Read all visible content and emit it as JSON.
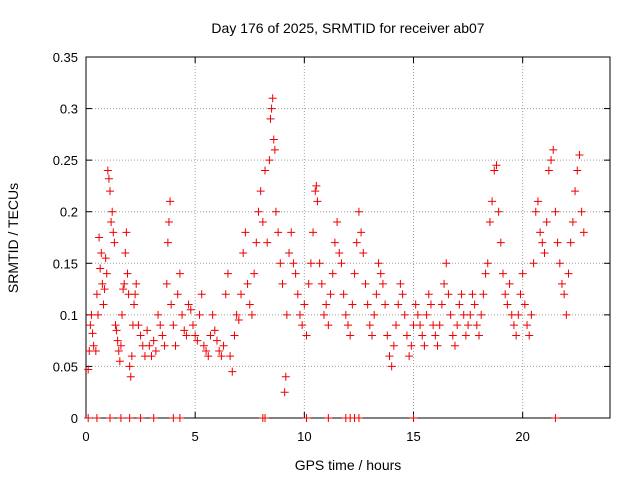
{
  "chart_data": {
    "type": "scatter",
    "title": "Day 176 of 2025, SRMTID for receiver ab07",
    "xlabel": "GPS time / hours",
    "ylabel": "SRMTID / TECUs",
    "xlim": [
      0,
      24
    ],
    "ylim": [
      0,
      0.35
    ],
    "x_ticks": [
      0,
      5,
      10,
      15,
      20
    ],
    "y_ticks": [
      0,
      0.05,
      0.1,
      0.15,
      0.2,
      0.25,
      0.3,
      0.35
    ],
    "x_tick_labels": [
      "0",
      "5",
      "10",
      "15",
      "20"
    ],
    "y_tick_labels": [
      "0",
      "0.05",
      "0.1",
      "0.15",
      "0.2",
      "0.25",
      "0.3",
      "0.35"
    ],
    "grid": true,
    "marker": "plus",
    "marker_color": "#ee0000",
    "series": [
      {
        "name": "ab07",
        "points": [
          [
            0.1,
            0.047
          ],
          [
            0.15,
            0.065
          ],
          [
            0.2,
            0.09
          ],
          [
            0.25,
            0.1
          ],
          [
            0.3,
            0.082
          ],
          [
            0.35,
            0.07
          ],
          [
            0.45,
            0.065
          ],
          [
            0.5,
            0.12
          ],
          [
            0.55,
            0.1
          ],
          [
            0.6,
            0.175
          ],
          [
            0.65,
            0.145
          ],
          [
            0.7,
            0.16
          ],
          [
            0.75,
            0.13
          ],
          [
            0.8,
            0.11
          ],
          [
            0.85,
            0.125
          ],
          [
            0.9,
            0.155
          ],
          [
            0.95,
            0.14
          ],
          [
            1.0,
            0.24
          ],
          [
            1.05,
            0.232
          ],
          [
            1.1,
            0.22
          ],
          [
            1.15,
            0.19
          ],
          [
            1.2,
            0.2
          ],
          [
            1.25,
            0.18
          ],
          [
            1.3,
            0.17
          ],
          [
            1.35,
            0.09
          ],
          [
            1.4,
            0.085
          ],
          [
            1.45,
            0.075
          ],
          [
            1.5,
            0.065
          ],
          [
            1.55,
            0.055
          ],
          [
            1.6,
            0.07
          ],
          [
            1.65,
            0.1
          ],
          [
            1.7,
            0.125
          ],
          [
            1.75,
            0.13
          ],
          [
            1.8,
            0.16
          ],
          [
            1.85,
            0.18
          ],
          [
            1.9,
            0.14
          ],
          [
            1.95,
            0.12
          ],
          [
            2.0,
            0.05
          ],
          [
            2.05,
            0.04
          ],
          [
            2.1,
            0.06
          ],
          [
            2.15,
            0.09
          ],
          [
            2.2,
            0.11
          ],
          [
            2.25,
            0.12
          ],
          [
            2.3,
            0.13
          ],
          [
            2.4,
            0.09
          ],
          [
            2.5,
            0.08
          ],
          [
            2.6,
            0.07
          ],
          [
            2.7,
            0.06
          ],
          [
            2.8,
            0.085
          ],
          [
            2.9,
            0.07
          ],
          [
            3.0,
            0.06
          ],
          [
            3.1,
            0.075
          ],
          [
            3.2,
            0.065
          ],
          [
            3.3,
            0.1
          ],
          [
            3.4,
            0.09
          ],
          [
            3.5,
            0.08
          ],
          [
            3.6,
            0.07
          ],
          [
            3.7,
            0.13
          ],
          [
            3.75,
            0.17
          ],
          [
            3.8,
            0.19
          ],
          [
            3.85,
            0.21
          ],
          [
            3.9,
            0.11
          ],
          [
            4.0,
            0.09
          ],
          [
            4.1,
            0.07
          ],
          [
            4.2,
            0.12
          ],
          [
            4.3,
            0.14
          ],
          [
            4.4,
            0.1
          ],
          [
            4.5,
            0.085
          ],
          [
            4.6,
            0.08
          ],
          [
            4.7,
            0.11
          ],
          [
            4.8,
            0.105
          ],
          [
            4.9,
            0.09
          ],
          [
            5.0,
            0.08
          ],
          [
            5.1,
            0.075
          ],
          [
            5.2,
            0.1
          ],
          [
            5.3,
            0.12
          ],
          [
            5.4,
            0.07
          ],
          [
            5.5,
            0.065
          ],
          [
            5.6,
            0.06
          ],
          [
            5.7,
            0.08
          ],
          [
            5.8,
            0.1
          ],
          [
            5.9,
            0.085
          ],
          [
            6.0,
            0.075
          ],
          [
            6.1,
            0.065
          ],
          [
            6.2,
            0.06
          ],
          [
            6.3,
            0.07
          ],
          [
            6.4,
            0.12
          ],
          [
            6.5,
            0.14
          ],
          [
            6.6,
            0.06
          ],
          [
            6.7,
            0.045
          ],
          [
            6.8,
            0.08
          ],
          [
            6.9,
            0.1
          ],
          [
            7.0,
            0.095
          ],
          [
            7.1,
            0.12
          ],
          [
            7.2,
            0.16
          ],
          [
            7.3,
            0.18
          ],
          [
            7.4,
            0.13
          ],
          [
            7.5,
            0.11
          ],
          [
            7.6,
            0.1
          ],
          [
            7.7,
            0.14
          ],
          [
            7.8,
            0.17
          ],
          [
            7.9,
            0.2
          ],
          [
            8.0,
            0.22
          ],
          [
            8.1,
            0.19
          ],
          [
            8.2,
            0.24
          ],
          [
            8.3,
            0.17
          ],
          [
            8.4,
            0.25
          ],
          [
            8.45,
            0.29
          ],
          [
            8.5,
            0.3
          ],
          [
            8.55,
            0.31
          ],
          [
            8.6,
            0.27
          ],
          [
            8.65,
            0.26
          ],
          [
            8.7,
            0.2
          ],
          [
            8.8,
            0.18
          ],
          [
            8.9,
            0.15
          ],
          [
            9.0,
            0.13
          ],
          [
            9.1,
            0.025
          ],
          [
            9.15,
            0.04
          ],
          [
            9.2,
            0.1
          ],
          [
            9.3,
            0.16
          ],
          [
            9.4,
            0.18
          ],
          [
            9.5,
            0.15
          ],
          [
            9.6,
            0.14
          ],
          [
            9.7,
            0.12
          ],
          [
            9.8,
            0.1
          ],
          [
            9.9,
            0.09
          ],
          [
            10.0,
            0.11
          ],
          [
            10.1,
            0.08
          ],
          [
            10.2,
            0.13
          ],
          [
            10.3,
            0.15
          ],
          [
            10.4,
            0.18
          ],
          [
            10.5,
            0.22
          ],
          [
            10.55,
            0.225
          ],
          [
            10.6,
            0.21
          ],
          [
            10.7,
            0.15
          ],
          [
            10.8,
            0.13
          ],
          [
            10.9,
            0.1
          ],
          [
            11.0,
            0.11
          ],
          [
            11.1,
            0.09
          ],
          [
            11.2,
            0.12
          ],
          [
            11.3,
            0.14
          ],
          [
            11.4,
            0.17
          ],
          [
            11.5,
            0.19
          ],
          [
            11.6,
            0.16
          ],
          [
            11.7,
            0.15
          ],
          [
            11.8,
            0.12
          ],
          [
            11.9,
            0.1
          ],
          [
            12.0,
            0.09
          ],
          [
            12.1,
            0.08
          ],
          [
            12.2,
            0.11
          ],
          [
            12.3,
            0.14
          ],
          [
            12.4,
            0.17
          ],
          [
            12.5,
            0.2
          ],
          [
            12.6,
            0.18
          ],
          [
            12.7,
            0.16
          ],
          [
            12.8,
            0.13
          ],
          [
            12.9,
            0.11
          ],
          [
            13.0,
            0.09
          ],
          [
            13.1,
            0.08
          ],
          [
            13.2,
            0.1
          ],
          [
            13.3,
            0.12
          ],
          [
            13.4,
            0.15
          ],
          [
            13.5,
            0.14
          ],
          [
            13.6,
            0.13
          ],
          [
            13.7,
            0.11
          ],
          [
            13.8,
            0.08
          ],
          [
            13.9,
            0.06
          ],
          [
            14.0,
            0.05
          ],
          [
            14.1,
            0.07
          ],
          [
            14.2,
            0.09
          ],
          [
            14.3,
            0.11
          ],
          [
            14.4,
            0.13
          ],
          [
            14.5,
            0.12
          ],
          [
            14.6,
            0.1
          ],
          [
            14.7,
            0.08
          ],
          [
            14.8,
            0.06
          ],
          [
            14.9,
            0.07
          ],
          [
            15.0,
            0.09
          ],
          [
            15.1,
            0.11
          ],
          [
            15.2,
            0.1
          ],
          [
            15.3,
            0.09
          ],
          [
            15.4,
            0.08
          ],
          [
            15.5,
            0.07
          ],
          [
            15.6,
            0.1
          ],
          [
            15.7,
            0.12
          ],
          [
            15.8,
            0.11
          ],
          [
            15.9,
            0.09
          ],
          [
            16.0,
            0.08
          ],
          [
            16.1,
            0.07
          ],
          [
            16.2,
            0.09
          ],
          [
            16.3,
            0.11
          ],
          [
            16.4,
            0.13
          ],
          [
            16.5,
            0.15
          ],
          [
            16.6,
            0.12
          ],
          [
            16.7,
            0.1
          ],
          [
            16.8,
            0.08
          ],
          [
            16.9,
            0.07
          ],
          [
            17.0,
            0.09
          ],
          [
            17.1,
            0.11
          ],
          [
            17.2,
            0.12
          ],
          [
            17.3,
            0.1
          ],
          [
            17.4,
            0.08
          ],
          [
            17.5,
            0.09
          ],
          [
            17.6,
            0.1
          ],
          [
            17.7,
            0.12
          ],
          [
            17.8,
            0.11
          ],
          [
            17.9,
            0.09
          ],
          [
            18.0,
            0.08
          ],
          [
            18.1,
            0.1
          ],
          [
            18.2,
            0.12
          ],
          [
            18.3,
            0.14
          ],
          [
            18.4,
            0.15
          ],
          [
            18.5,
            0.19
          ],
          [
            18.6,
            0.21
          ],
          [
            18.7,
            0.24
          ],
          [
            18.8,
            0.245
          ],
          [
            18.9,
            0.2
          ],
          [
            19.0,
            0.17
          ],
          [
            19.1,
            0.14
          ],
          [
            19.2,
            0.12
          ],
          [
            19.3,
            0.11
          ],
          [
            19.4,
            0.13
          ],
          [
            19.5,
            0.1
          ],
          [
            19.6,
            0.09
          ],
          [
            19.7,
            0.08
          ],
          [
            19.8,
            0.1
          ],
          [
            19.9,
            0.12
          ],
          [
            20.0,
            0.14
          ],
          [
            20.1,
            0.11
          ],
          [
            20.2,
            0.09
          ],
          [
            20.3,
            0.08
          ],
          [
            20.4,
            0.1
          ],
          [
            20.5,
            0.15
          ],
          [
            20.6,
            0.2
          ],
          [
            20.7,
            0.21
          ],
          [
            20.8,
            0.18
          ],
          [
            20.9,
            0.17
          ],
          [
            21.0,
            0.16
          ],
          [
            21.1,
            0.19
          ],
          [
            21.2,
            0.24
          ],
          [
            21.3,
            0.25
          ],
          [
            21.4,
            0.26
          ],
          [
            21.5,
            0.2
          ],
          [
            21.6,
            0.17
          ],
          [
            21.7,
            0.15
          ],
          [
            21.8,
            0.13
          ],
          [
            21.9,
            0.12
          ],
          [
            22.0,
            0.1
          ],
          [
            22.1,
            0.14
          ],
          [
            22.2,
            0.17
          ],
          [
            22.3,
            0.19
          ],
          [
            22.4,
            0.22
          ],
          [
            22.5,
            0.24
          ],
          [
            22.6,
            0.255
          ],
          [
            22.7,
            0.2
          ],
          [
            22.8,
            0.18
          ]
        ],
        "zero_points_x": [
          0.1,
          0.5,
          1.1,
          1.6,
          2.0,
          2.5,
          3.1,
          4.0,
          4.3,
          8.1,
          8.2,
          10.1,
          11.1,
          11.9,
          12.1,
          12.3,
          12.5,
          15.0,
          21.5
        ]
      }
    ]
  }
}
